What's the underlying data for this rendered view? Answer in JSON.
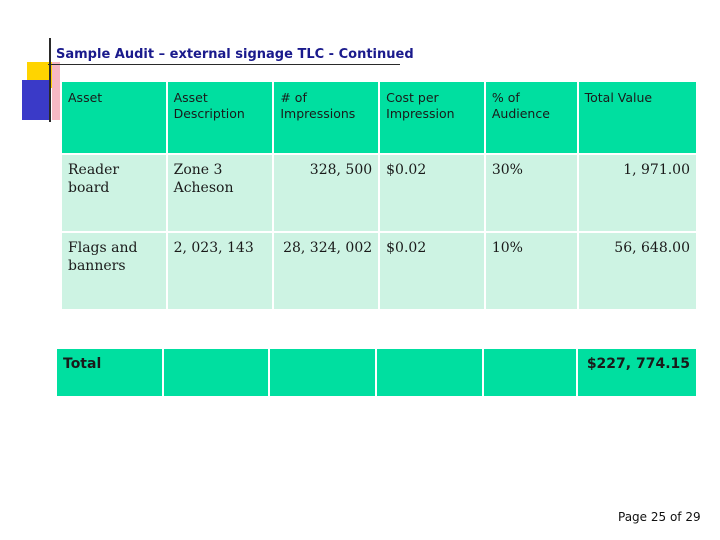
{
  "title": "Sample Audit – external signage TLC - Continued",
  "headers": [
    "Asset",
    "Asset Description",
    "# of Impressions",
    "Cost per Impression",
    "% of Audience",
    "Total Value"
  ],
  "rows": [
    {
      "asset": "Reader board",
      "description": "Zone 3 Acheson",
      "impressions": "328, 500",
      "cost": "$0.02",
      "audience": "30%",
      "total": "1, 971.00"
    },
    {
      "asset": "Flags and banners",
      "description": "2, 023, 143",
      "impressions": "28, 324, 002",
      "cost": "$0.02",
      "audience": "10%",
      "total": "56, 648.00"
    }
  ],
  "total_row": {
    "label": "Total",
    "value": "$227, 774.15"
  },
  "footer": "Page 25 of 29",
  "colors": {
    "header_green": "#00dfa0",
    "row_green": "#cdf3e3",
    "title_blue": "#1a1a8c"
  }
}
